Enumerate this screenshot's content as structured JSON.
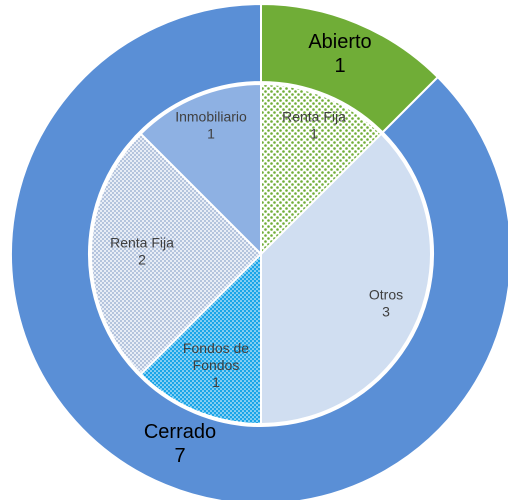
{
  "chart_data": {
    "type": "pie",
    "rings": [
      {
        "ring": "outer",
        "slices": [
          {
            "label": "Abierto",
            "value": 1,
            "color": "#70AD37"
          },
          {
            "label": "Cerrado",
            "value": 7,
            "color": "#5A8FD6"
          }
        ]
      },
      {
        "ring": "inner",
        "slices": [
          {
            "label": "Renta Fija",
            "value": 1,
            "color": "#A9D18E",
            "pattern": "dots-green"
          },
          {
            "label": "Otros",
            "value": 3,
            "color": "#D0DEF1",
            "pattern": "solid"
          },
          {
            "label": "Fondos de Fondos",
            "value": 1,
            "color": "#1AA5E8",
            "pattern": "dots-blue"
          },
          {
            "label": "Renta Fija",
            "value": 2,
            "color": "#C5D1E6",
            "pattern": "dots-grey"
          },
          {
            "label": "Inmobiliario",
            "value": 1,
            "color": "#8EB1E3",
            "pattern": "solid"
          }
        ]
      }
    ]
  }
}
